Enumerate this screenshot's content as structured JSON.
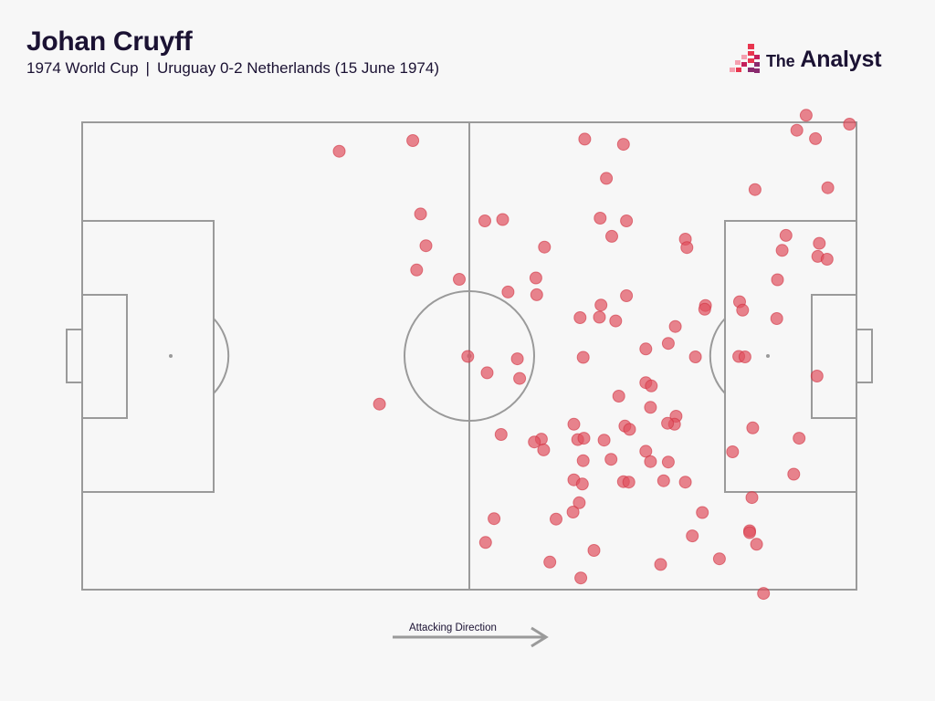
{
  "header": {
    "title": "Johan Cruyff",
    "competition": "1974 World Cup",
    "separator": "|",
    "match": "Uruguay 0-2 Netherlands (15 June 1974)"
  },
  "brand": {
    "prefix": "The",
    "name": "Analyst",
    "colors": [
      "#e8364f",
      "#c41f5b",
      "#8a2a6e",
      "#f5a0b0"
    ]
  },
  "pitch": {
    "line_color": "#9a9a9a",
    "background": "#f7f7f7"
  },
  "attacking_direction": {
    "label": "Attacking Direction",
    "arrow": "right"
  },
  "chart_data": {
    "type": "scatter",
    "description_units": "pitch coordinates: x 0-100 along length in attacking direction, y 0-100 across width from top touchline",
    "marker_color": "#e0505e",
    "xlim": [
      0,
      100
    ],
    "ylim": [
      0,
      100
    ],
    "points": [
      {
        "x": 33.2,
        "y": 6.2
      },
      {
        "x": 42.7,
        "y": 3.9
      },
      {
        "x": 64.9,
        "y": 3.6
      },
      {
        "x": 69.9,
        "y": 4.7
      },
      {
        "x": 93.5,
        "y": -1.5
      },
      {
        "x": 99.1,
        "y": 0.4
      },
      {
        "x": 92.3,
        "y": 1.7
      },
      {
        "x": 94.7,
        "y": 3.5
      },
      {
        "x": 67.7,
        "y": 12.0
      },
      {
        "x": 86.9,
        "y": 14.4
      },
      {
        "x": 96.3,
        "y": 14.0
      },
      {
        "x": 43.7,
        "y": 19.6
      },
      {
        "x": 52.0,
        "y": 21.1
      },
      {
        "x": 54.3,
        "y": 20.8
      },
      {
        "x": 66.9,
        "y": 20.5
      },
      {
        "x": 70.3,
        "y": 21.1
      },
      {
        "x": 68.4,
        "y": 24.4
      },
      {
        "x": 77.9,
        "y": 25.0
      },
      {
        "x": 78.1,
        "y": 26.8
      },
      {
        "x": 90.9,
        "y": 24.2
      },
      {
        "x": 95.2,
        "y": 25.9
      },
      {
        "x": 44.4,
        "y": 26.4
      },
      {
        "x": 59.7,
        "y": 26.7
      },
      {
        "x": 90.4,
        "y": 27.4
      },
      {
        "x": 95.0,
        "y": 28.7
      },
      {
        "x": 96.2,
        "y": 29.3
      },
      {
        "x": 43.2,
        "y": 31.6
      },
      {
        "x": 48.7,
        "y": 33.6
      },
      {
        "x": 58.6,
        "y": 33.3
      },
      {
        "x": 89.8,
        "y": 33.7
      },
      {
        "x": 55.0,
        "y": 36.3
      },
      {
        "x": 58.7,
        "y": 36.9
      },
      {
        "x": 70.3,
        "y": 37.1
      },
      {
        "x": 67.0,
        "y": 39.1
      },
      {
        "x": 80.5,
        "y": 39.2
      },
      {
        "x": 80.4,
        "y": 40.0
      },
      {
        "x": 84.9,
        "y": 38.4
      },
      {
        "x": 85.3,
        "y": 40.2
      },
      {
        "x": 64.3,
        "y": 41.8
      },
      {
        "x": 66.8,
        "y": 41.7
      },
      {
        "x": 68.9,
        "y": 42.5
      },
      {
        "x": 89.7,
        "y": 42.0
      },
      {
        "x": 76.6,
        "y": 43.7
      },
      {
        "x": 75.7,
        "y": 47.3
      },
      {
        "x": 72.8,
        "y": 48.5
      },
      {
        "x": 64.7,
        "y": 50.3
      },
      {
        "x": 79.2,
        "y": 50.2
      },
      {
        "x": 84.8,
        "y": 50.1
      },
      {
        "x": 85.6,
        "y": 50.2
      },
      {
        "x": 49.8,
        "y": 50.1
      },
      {
        "x": 56.2,
        "y": 50.6
      },
      {
        "x": 52.3,
        "y": 53.6
      },
      {
        "x": 56.5,
        "y": 54.8
      },
      {
        "x": 94.9,
        "y": 54.3
      },
      {
        "x": 72.8,
        "y": 55.7
      },
      {
        "x": 73.5,
        "y": 56.4
      },
      {
        "x": 69.3,
        "y": 58.6
      },
      {
        "x": 73.4,
        "y": 61.0
      },
      {
        "x": 38.4,
        "y": 60.3
      },
      {
        "x": 76.7,
        "y": 62.9
      },
      {
        "x": 76.5,
        "y": 64.6
      },
      {
        "x": 75.6,
        "y": 64.4
      },
      {
        "x": 63.5,
        "y": 64.6
      },
      {
        "x": 70.1,
        "y": 65.0
      },
      {
        "x": 70.7,
        "y": 65.7
      },
      {
        "x": 86.6,
        "y": 65.4
      },
      {
        "x": 54.1,
        "y": 66.8
      },
      {
        "x": 59.3,
        "y": 67.8
      },
      {
        "x": 58.4,
        "y": 68.4
      },
      {
        "x": 64.0,
        "y": 67.9
      },
      {
        "x": 64.8,
        "y": 67.6
      },
      {
        "x": 67.4,
        "y": 68.0
      },
      {
        "x": 92.6,
        "y": 67.6
      },
      {
        "x": 59.6,
        "y": 70.1
      },
      {
        "x": 72.8,
        "y": 70.4
      },
      {
        "x": 84.0,
        "y": 70.5
      },
      {
        "x": 64.7,
        "y": 72.4
      },
      {
        "x": 68.3,
        "y": 72.1
      },
      {
        "x": 75.7,
        "y": 72.7
      },
      {
        "x": 73.4,
        "y": 72.6
      },
      {
        "x": 91.9,
        "y": 75.3
      },
      {
        "x": 63.5,
        "y": 76.5
      },
      {
        "x": 64.6,
        "y": 77.4
      },
      {
        "x": 69.9,
        "y": 76.9
      },
      {
        "x": 70.6,
        "y": 77.0
      },
      {
        "x": 75.1,
        "y": 76.7
      },
      {
        "x": 77.9,
        "y": 77.0
      },
      {
        "x": 86.5,
        "y": 80.3
      },
      {
        "x": 64.2,
        "y": 81.4
      },
      {
        "x": 63.4,
        "y": 83.4
      },
      {
        "x": 53.2,
        "y": 84.8
      },
      {
        "x": 61.2,
        "y": 84.9
      },
      {
        "x": 80.1,
        "y": 83.5
      },
      {
        "x": 86.2,
        "y": 87.4
      },
      {
        "x": 86.2,
        "y": 87.8
      },
      {
        "x": 87.1,
        "y": 90.3
      },
      {
        "x": 78.8,
        "y": 88.5
      },
      {
        "x": 52.1,
        "y": 89.9
      },
      {
        "x": 66.1,
        "y": 91.6
      },
      {
        "x": 60.4,
        "y": 94.1
      },
      {
        "x": 74.7,
        "y": 94.6
      },
      {
        "x": 82.3,
        "y": 93.4
      },
      {
        "x": 64.4,
        "y": 97.5
      },
      {
        "x": 88.0,
        "y": 100.8
      }
    ]
  }
}
